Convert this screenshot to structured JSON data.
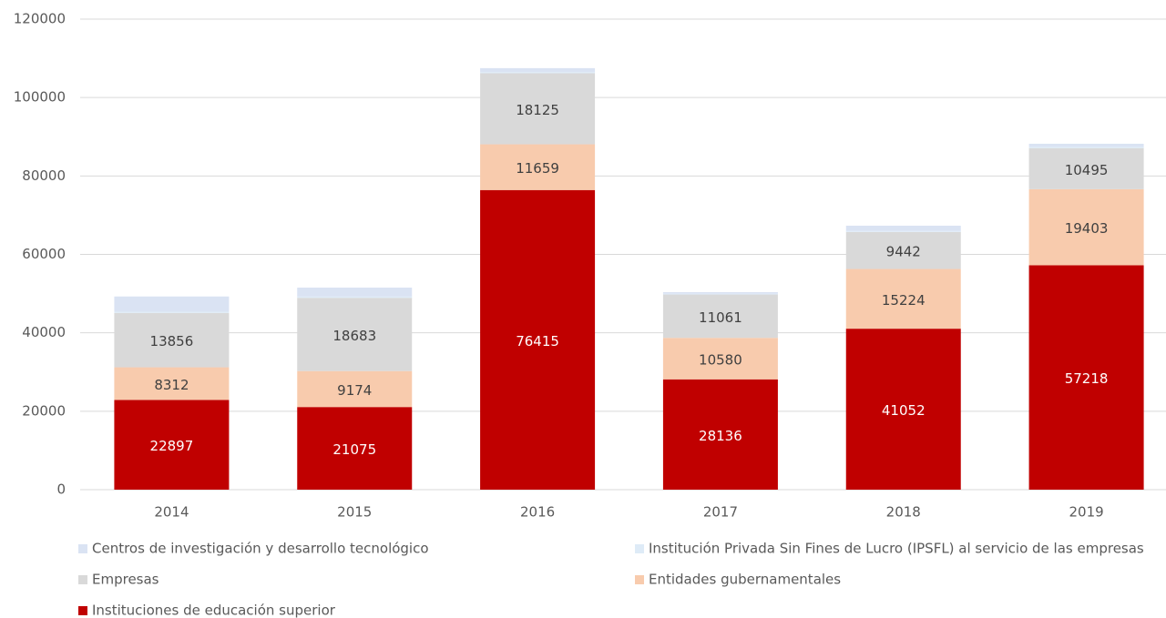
{
  "chart_data": {
    "type": "stacked_bar",
    "categories": [
      "2014",
      "2015",
      "2016",
      "2017",
      "2018",
      "2019"
    ],
    "series": [
      {
        "name": "Centros de investigación y desarrollo tecnológico",
        "color": "#dae3f3",
        "values": [
          3900,
          2300,
          1000,
          400,
          1300,
          800
        ]
      },
      {
        "name": "Institución Privada Sin Fines de Lucro (IPSFL) al servicio de las empresas",
        "color": "#deebf7",
        "values": [
          300,
          300,
          300,
          200,
          300,
          300
        ]
      },
      {
        "name": "Empresas",
        "color": "#d9d9d9",
        "values": [
          13856,
          18683,
          18125,
          11061,
          9442,
          10495
        ]
      },
      {
        "name": "Entidades gubernamentales",
        "color": "#f8cbad",
        "values": [
          8312,
          9174,
          11659,
          10580,
          15224,
          19403
        ]
      },
      {
        "name": "Instituciones de educación superior",
        "color": "#c00000",
        "values": [
          22897,
          21075,
          76415,
          28136,
          41052,
          57218
        ]
      }
    ],
    "labeled_series": [
      2,
      3,
      4
    ],
    "ylim": [
      0,
      120000
    ],
    "yticks": [
      0,
      20000,
      40000,
      60000,
      80000,
      100000,
      120000
    ],
    "grid": true
  }
}
